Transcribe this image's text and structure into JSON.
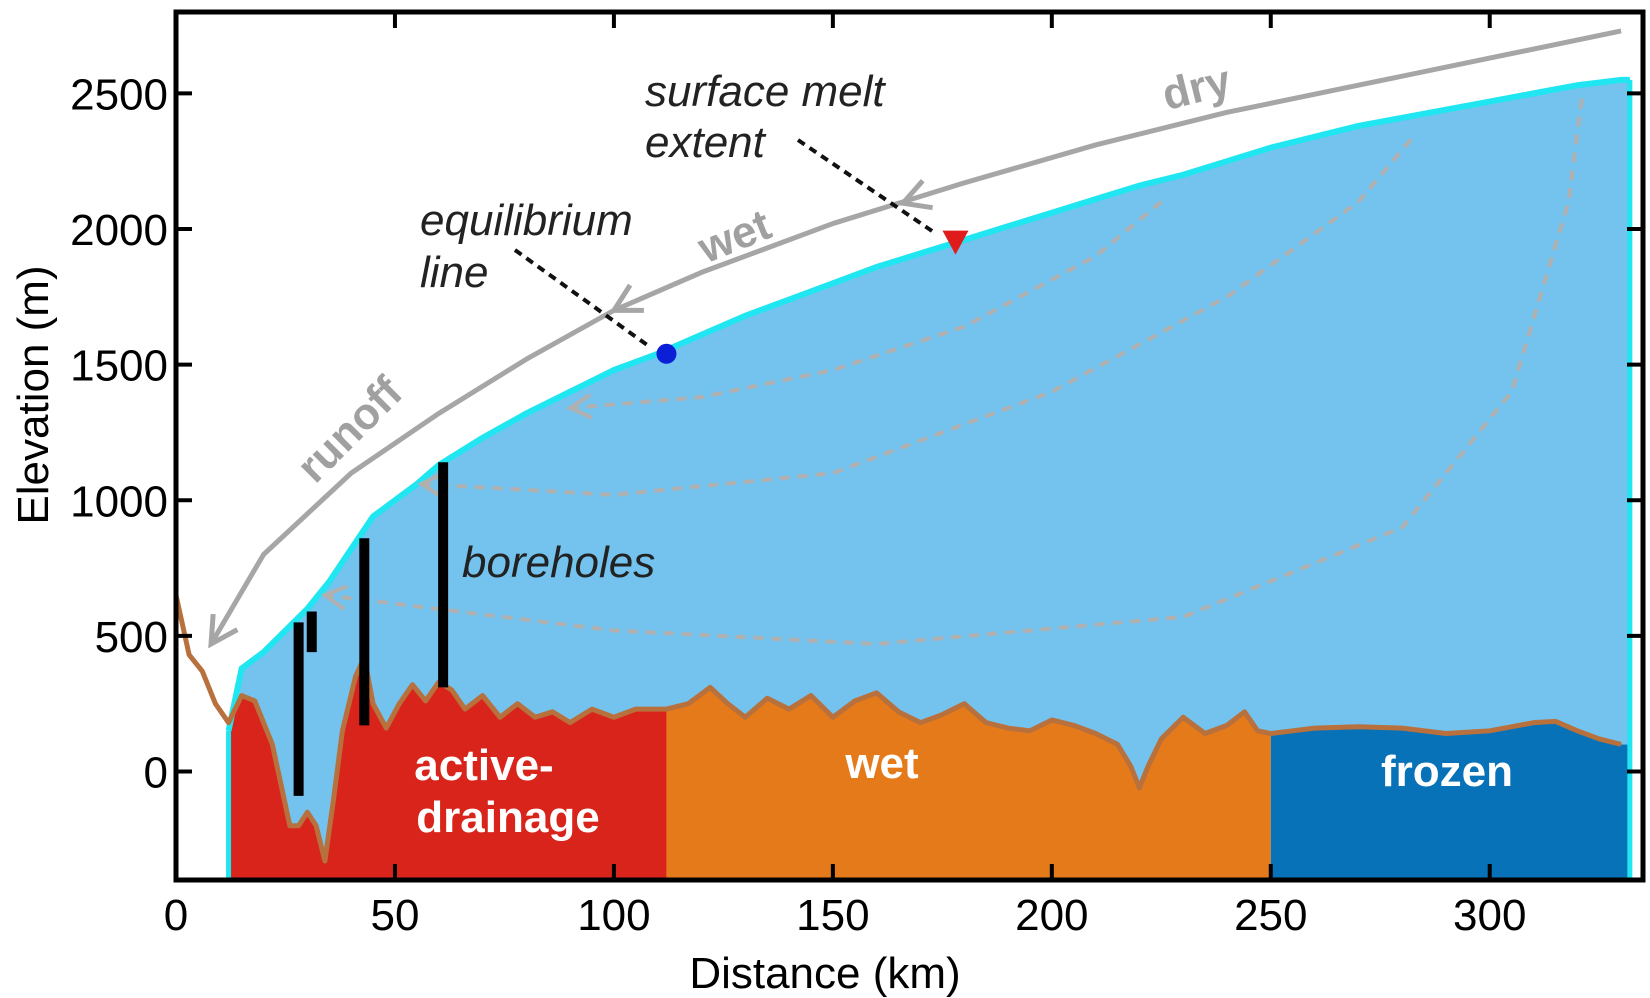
{
  "axes": {
    "xlabel": "Distance (km)",
    "ylabel": "Elevation (m)",
    "xlim": [
      0,
      335
    ],
    "ylim": [
      -400,
      2800
    ],
    "xticks": [
      0,
      50,
      100,
      150,
      200,
      250,
      300
    ],
    "yticks": [
      0,
      500,
      1000,
      1500,
      2000,
      2500
    ]
  },
  "zones": [
    {
      "label_line1": "active-",
      "label_line2": "drainage",
      "x_start": 12,
      "x_end": 112,
      "color": "#d9241c"
    },
    {
      "label": "wet",
      "x_start": 112,
      "x_end": 250,
      "color": "#e57a1a"
    },
    {
      "label": "frozen",
      "x_start": 250,
      "x_end": 332,
      "color": "#0772b8"
    }
  ],
  "flow_labels": {
    "runoff": "runoff",
    "wet": "wet",
    "dry": "dry"
  },
  "annotations": {
    "equilibrium_line_1": "equilibrium",
    "equilibrium_line_2": "line",
    "surface_melt_1": "surface melt",
    "surface_melt_2": "extent",
    "boreholes": "boreholes"
  },
  "markers": {
    "equilibrium_point": {
      "x": 112,
      "y": 1540,
      "color": "#0a1fd6"
    },
    "melt_extent_point": {
      "x": 178,
      "y": 1950,
      "color": "#e01b1b"
    }
  },
  "chart_data": {
    "type": "area",
    "surface": {
      "x": [
        12,
        15,
        20,
        25,
        30,
        35,
        40,
        45,
        50,
        55,
        60,
        70,
        80,
        90,
        100,
        110,
        120,
        130,
        140,
        150,
        160,
        170,
        180,
        190,
        200,
        210,
        220,
        230,
        240,
        250,
        260,
        270,
        280,
        290,
        300,
        310,
        320,
        330,
        332
      ],
      "y": [
        150,
        380,
        440,
        520,
        600,
        700,
        820,
        940,
        1000,
        1060,
        1130,
        1230,
        1320,
        1400,
        1480,
        1540,
        1610,
        1680,
        1740,
        1800,
        1860,
        1910,
        1960,
        2010,
        2060,
        2110,
        2160,
        2200,
        2250,
        2300,
        2340,
        2380,
        2410,
        2440,
        2470,
        2500,
        2530,
        2550,
        2550
      ]
    },
    "bed": {
      "x": [
        0,
        3,
        6,
        9,
        12,
        15,
        18,
        22,
        26,
        28,
        30,
        32,
        34,
        36,
        38,
        41,
        43,
        45,
        48,
        51,
        54,
        57,
        60,
        63,
        66,
        70,
        74,
        78,
        82,
        86,
        90,
        95,
        100,
        105,
        112,
        117,
        122,
        126,
        130,
        135,
        140,
        145,
        150,
        155,
        160,
        165,
        170,
        175,
        180,
        185,
        190,
        195,
        200,
        205,
        210,
        215,
        218,
        220,
        222,
        225,
        230,
        235,
        240,
        244,
        247,
        250,
        255,
        260,
        270,
        280,
        290,
        300,
        310,
        315,
        320,
        325,
        330
      ],
      "y": [
        650,
        430,
        370,
        250,
        180,
        280,
        260,
        100,
        -200,
        -200,
        -150,
        -200,
        -330,
        -100,
        150,
        350,
        420,
        250,
        160,
        250,
        320,
        260,
        330,
        300,
        230,
        280,
        200,
        250,
        200,
        220,
        180,
        230,
        200,
        230,
        230,
        250,
        310,
        250,
        200,
        270,
        230,
        280,
        200,
        260,
        290,
        220,
        180,
        210,
        250,
        180,
        160,
        150,
        190,
        170,
        140,
        100,
        20,
        -60,
        20,
        120,
        200,
        140,
        170,
        220,
        150,
        140,
        150,
        160,
        165,
        160,
        140,
        150,
        180,
        185,
        150,
        120,
        100
      ]
    },
    "boreholes": [
      {
        "x": 28,
        "y_top": 550,
        "y_bottom": -90
      },
      {
        "x": 31,
        "y_top": 590,
        "y_bottom": 440
      },
      {
        "x": 43,
        "y_top": 860,
        "y_bottom": 170
      },
      {
        "x": 61,
        "y_top": 1140,
        "y_bottom": 310
      }
    ],
    "ice_flow_lines": [
      {
        "x": [
          225,
          210,
          180,
          150,
          120,
          90
        ],
        "y": [
          2100,
          1900,
          1640,
          1480,
          1380,
          1340
        ]
      },
      {
        "x": [
          282,
          270,
          240,
          200,
          150,
          100,
          56
        ],
        "y": [
          2330,
          2100,
          1750,
          1400,
          1100,
          1020,
          1060
        ]
      },
      {
        "x": [
          321,
          318,
          305,
          280,
          230,
          160,
          100,
          34
        ],
        "y": [
          2480,
          2100,
          1400,
          900,
          570,
          470,
          520,
          650
        ]
      }
    ],
    "surface_arrow": {
      "x": [
        8,
        20,
        40,
        60,
        80,
        100,
        120,
        150,
        180,
        210,
        240,
        270,
        300,
        330
      ],
      "y": [
        470,
        800,
        1100,
        1320,
        1520,
        1700,
        1840,
        2020,
        2170,
        2310,
        2430,
        2530,
        2630,
        2730
      ]
    }
  }
}
